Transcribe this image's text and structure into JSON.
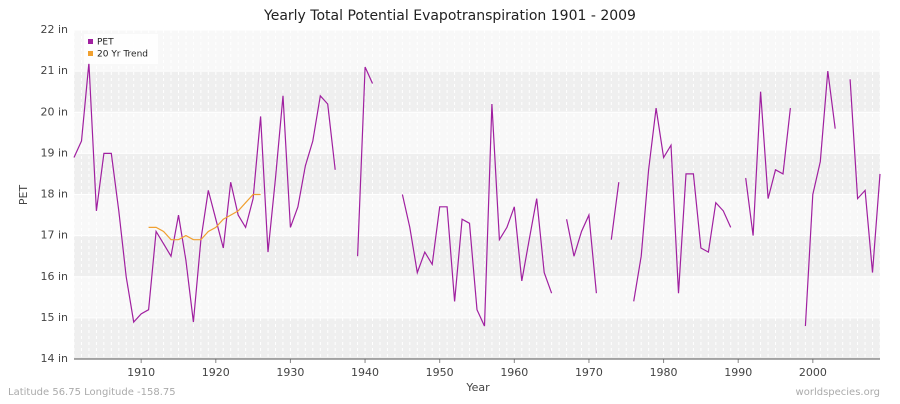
{
  "chart_data": {
    "type": "line",
    "title": "Yearly Total Potential Evapotranspiration 1901 - 2009",
    "x_label": "Year",
    "y_label": "PET",
    "footer_left": "Latitude 56.75 Longitude -158.75",
    "footer_right": "worldspecies.org",
    "legend_position": "top-left",
    "grid": true,
    "xlim": [
      1901,
      2009
    ],
    "ylim": [
      14,
      22
    ],
    "xticks": [
      1910,
      1920,
      1930,
      1940,
      1950,
      1960,
      1970,
      1980,
      1990,
      2000
    ],
    "yticks": [
      {
        "value": 14,
        "label": "14 in"
      },
      {
        "value": 15,
        "label": "15 in"
      },
      {
        "value": 16,
        "label": "16 in"
      },
      {
        "value": 17,
        "label": "17 in"
      },
      {
        "value": 18,
        "label": "18 in"
      },
      {
        "value": 19,
        "label": "19 in"
      },
      {
        "value": 20,
        "label": "20 in"
      },
      {
        "value": 21,
        "label": "21 in"
      },
      {
        "value": 22,
        "label": "22 in"
      }
    ],
    "x": [
      1901,
      1902,
      1903,
      1904,
      1905,
      1906,
      1907,
      1908,
      1909,
      1910,
      1911,
      1912,
      1913,
      1914,
      1915,
      1916,
      1917,
      1918,
      1919,
      1920,
      1921,
      1922,
      1923,
      1924,
      1925,
      1926,
      1927,
      1928,
      1929,
      1930,
      1931,
      1932,
      1933,
      1934,
      1935,
      1936,
      1937,
      1938,
      1939,
      1940,
      1941,
      1942,
      1943,
      1944,
      1945,
      1946,
      1947,
      1948,
      1949,
      1950,
      1951,
      1952,
      1953,
      1954,
      1955,
      1956,
      1957,
      1958,
      1959,
      1960,
      1961,
      1962,
      1963,
      1964,
      1965,
      1966,
      1967,
      1968,
      1969,
      1970,
      1971,
      1972,
      1973,
      1974,
      1975,
      1976,
      1977,
      1978,
      1979,
      1980,
      1981,
      1982,
      1983,
      1984,
      1985,
      1986,
      1987,
      1988,
      1989,
      1990,
      1991,
      1992,
      1993,
      1994,
      1995,
      1996,
      1997,
      1998,
      1999,
      2000,
      2001,
      2002,
      2003,
      2004,
      2005,
      2006,
      2007,
      2008,
      2009
    ],
    "series": [
      {
        "name": "PET",
        "color": "#a020a0",
        "values": [
          18.9,
          19.3,
          21.2,
          17.6,
          19.0,
          19.0,
          17.6,
          16.0,
          14.9,
          15.1,
          15.2,
          17.1,
          16.8,
          16.5,
          17.5,
          16.4,
          14.9,
          16.9,
          18.1,
          17.4,
          16.7,
          18.3,
          17.5,
          17.2,
          17.9,
          19.9,
          16.6,
          18.4,
          20.4,
          17.2,
          17.7,
          18.7,
          19.3,
          20.4,
          20.2,
          18.6,
          null,
          null,
          16.5,
          21.1,
          20.7,
          null,
          null,
          null,
          18.0,
          17.2,
          16.1,
          16.6,
          16.3,
          17.7,
          17.7,
          15.4,
          17.4,
          17.3,
          15.2,
          14.8,
          20.2,
          16.9,
          17.2,
          17.7,
          15.9,
          16.9,
          17.9,
          16.1,
          15.6,
          null,
          17.4,
          16.5,
          17.1,
          17.5,
          15.6,
          null,
          16.9,
          18.3,
          null,
          15.4,
          16.5,
          18.6,
          20.1,
          18.9,
          19.2,
          15.6,
          18.5,
          18.5,
          16.7,
          16.6,
          17.8,
          17.6,
          17.2,
          null,
          18.4,
          17.0,
          20.5,
          17.9,
          18.6,
          18.5,
          20.1,
          null,
          14.8,
          18.0,
          18.8,
          21.0,
          19.6,
          null,
          20.8,
          17.9,
          18.1,
          16.1,
          18.5
        ]
      },
      {
        "name": "20 Yr Trend",
        "color": "#f0a030",
        "values": [
          null,
          null,
          null,
          null,
          null,
          null,
          null,
          null,
          null,
          null,
          17.2,
          17.2,
          17.1,
          16.9,
          16.9,
          17.0,
          16.9,
          16.9,
          17.1,
          17.2,
          17.4,
          17.5,
          17.6,
          17.8,
          18.0,
          18.0,
          null,
          null,
          null,
          null,
          null,
          null,
          null,
          null,
          null,
          null,
          null,
          null,
          null,
          null,
          null,
          null,
          null,
          null,
          null,
          null,
          null,
          null,
          null,
          null,
          null,
          null,
          null,
          null,
          null,
          null,
          null,
          null,
          null,
          null,
          null,
          null,
          null,
          null,
          null,
          null,
          null,
          null,
          null,
          null,
          null,
          null,
          null,
          null,
          null,
          null,
          null,
          null,
          null,
          null,
          null,
          null,
          null,
          null,
          null,
          null,
          null,
          null,
          null,
          null,
          null,
          null,
          null,
          null,
          null,
          null,
          null,
          null,
          null,
          null,
          null,
          null,
          null,
          null,
          null,
          null,
          null,
          null,
          null
        ]
      }
    ]
  }
}
